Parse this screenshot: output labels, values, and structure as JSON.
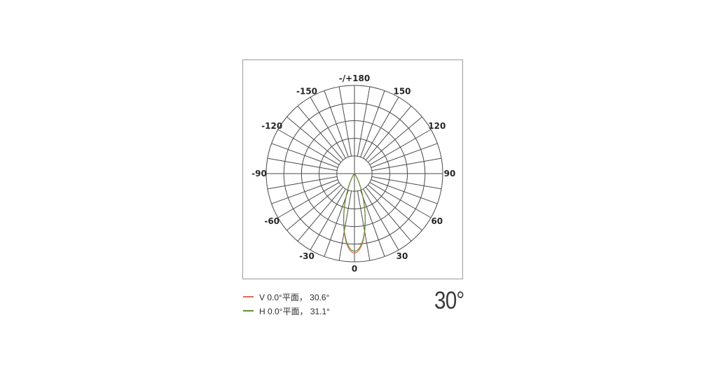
{
  "chart_data": {
    "type": "polar",
    "description": "Luminous intensity beam distribution polar diagram, 0 degrees at bottom, angle labels every 30 degrees",
    "radial_grid_step_deg": 10,
    "rings_relative": [
      0.2,
      0.4,
      0.6,
      0.8,
      1.0
    ],
    "angle_labels": [
      {
        "angle_deg": 180,
        "text": "-/+180"
      },
      {
        "angle_deg": 150,
        "text": "150"
      },
      {
        "angle_deg": 120,
        "text": "120"
      },
      {
        "angle_deg": 90,
        "text": "90"
      },
      {
        "angle_deg": 60,
        "text": "60"
      },
      {
        "angle_deg": 30,
        "text": "30"
      },
      {
        "angle_deg": 0,
        "text": "0"
      },
      {
        "angle_deg": -30,
        "text": "-30"
      },
      {
        "angle_deg": -60,
        "text": "-60"
      },
      {
        "angle_deg": -90,
        "text": "-90"
      },
      {
        "angle_deg": -120,
        "text": "-120"
      },
      {
        "angle_deg": -150,
        "text": "-150"
      }
    ],
    "series": [
      {
        "id": "v",
        "name": "V 0.0°平面",
        "beam_angle_deg": 30.6,
        "peak_relative": 0.9,
        "color": "#dc685c",
        "profile": "gaussian"
      },
      {
        "id": "h",
        "name": "H 0.0°平面",
        "beam_angle_deg": 31.1,
        "peak_relative": 0.88,
        "color": "#5f9137",
        "profile": "gaussian"
      }
    ],
    "grid_color": "#4a4a4a",
    "frame_color": "#9a9a9a",
    "label_color": "#262626",
    "legend_position": "bottom-left"
  },
  "legend": {
    "items": [
      {
        "label": "V 0.0°平面， 30.6°",
        "color": "#dc685c"
      },
      {
        "label": "H 0.0°平面， 31.1°",
        "color": "#5f9137"
      }
    ]
  },
  "beam_angle_label": "30°"
}
